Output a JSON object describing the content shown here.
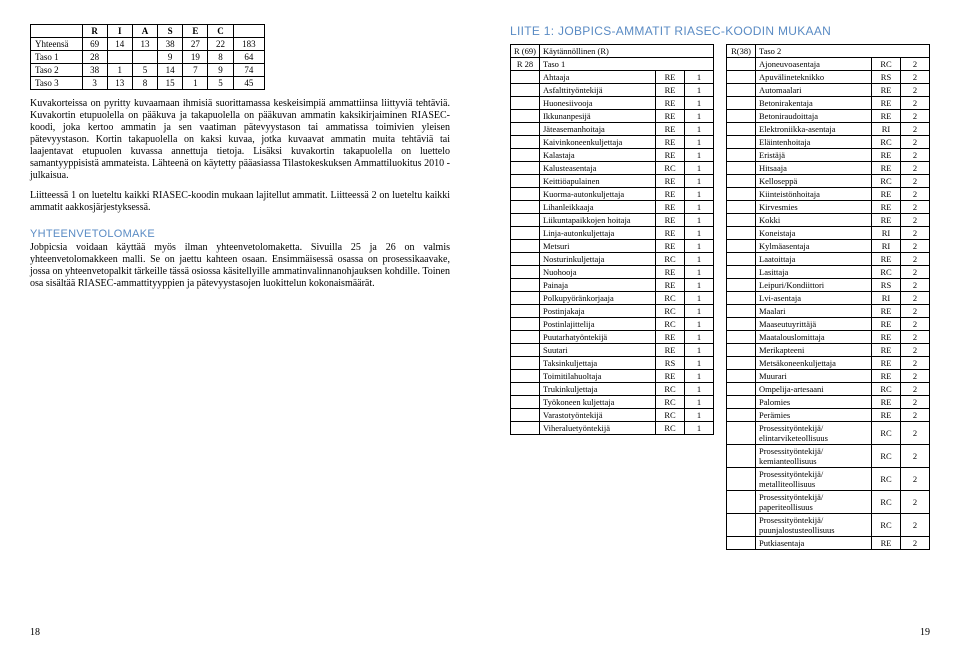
{
  "left": {
    "statTable": {
      "headers": [
        "R",
        "I",
        "A",
        "S",
        "E",
        "C"
      ],
      "rows": [
        {
          "label": "Yhteensä",
          "cells": [
            "69",
            "14",
            "13",
            "38",
            "27",
            "22",
            "183"
          ]
        },
        {
          "label": "Taso 1",
          "cells": [
            "28",
            "",
            "",
            "9",
            "19",
            "8",
            "64"
          ]
        },
        {
          "label": "Taso 2",
          "cells": [
            "38",
            "1",
            "5",
            "14",
            "7",
            "9",
            "74"
          ]
        },
        {
          "label": "Taso 3",
          "cells": [
            "3",
            "13",
            "8",
            "15",
            "1",
            "5",
            "45"
          ]
        }
      ]
    },
    "para1": "Kuvakorteissa on pyritty kuvaamaan ihmisiä suorittamassa keskeisimpiä ammattiinsa liittyviä tehtäviä. Kuvakortin etupuolella on pääkuva ja takapuolella on pääkuvan ammatin kaksikirjaiminen RIASEC-koodi, joka kertoo ammatin ja sen vaatiman pätevyystason tai ammatissa toimivien yleisen pätevyystason. Kortin takapuolella on kaksi kuvaa, jotka kuvaavat ammatin muita tehtäviä tai laajentavat etupuolen kuvassa annettuja tietoja. Lisäksi kuvakortin takapuolella on luettelo samantyyppisistä ammateista. Lähteenä on käytetty pääasiassa Tilastokeskuksen Ammattiluokitus 2010 -julkaisua.",
    "para2": "Liitteessä 1 on lueteltu kaikki RIASEC-koodin mukaan lajitellut ammatit. Liitteessä 2 on lueteltu kaikki ammatit aakkosjärjestyksessä.",
    "section": "YHTEENVETOLOMAKE",
    "para3": "Jobpicsia voidaan käyttää myös ilman yhteenvetolomaketta. Sivuilla 25 ja 26 on valmis yhteenvetolomakkeen malli. Se on jaettu kahteen osaan. Ensimmäisessä osassa on prosessikaavake, jossa on yhteenvetopalkit tärkeille tässä osiossa käsitellyille ammatinvalinnanohjauksen kohdille. Toinen osa sisältää RIASEC-ammattityyppien ja pätevyystasojen luokittelun kokonaismäärät.",
    "pagenum": "18"
  },
  "right": {
    "title": "LIITE 1: JOBPICS-AMMATIT RIASEC-KOODIN MUKAAN",
    "col1": {
      "header1a": "R (69)",
      "header1b": "Käytännöllinen (R)",
      "header2a": "R 28",
      "header2b": "Taso 1",
      "rows": [
        [
          "Ahtaaja",
          "RE",
          "1"
        ],
        [
          "Asfalttityöntekijä",
          "RE",
          "1"
        ],
        [
          "Huonesiivooja",
          "RE",
          "1"
        ],
        [
          "Ikkunanpesijä",
          "RE",
          "1"
        ],
        [
          "Jäteasemanhoitaja",
          "RE",
          "1"
        ],
        [
          "Kaivinkoneenkuljettaja",
          "RE",
          "1"
        ],
        [
          "Kalastaja",
          "RE",
          "1"
        ],
        [
          "Kalusteasentaja",
          "RC",
          "1"
        ],
        [
          "Keittiöapulainen",
          "RE",
          "1"
        ],
        [
          "Kuorma-autonkuljettaja",
          "RE",
          "1"
        ],
        [
          "Lihanleikkaaja",
          "RE",
          "1"
        ],
        [
          "Liikuntapaikkojen hoitaja",
          "RE",
          "1"
        ],
        [
          "Linja-autonkuljettaja",
          "RE",
          "1"
        ],
        [
          "Metsuri",
          "RE",
          "1"
        ],
        [
          "Nosturinkuljettaja",
          "RC",
          "1"
        ],
        [
          "Nuohooja",
          "RE",
          "1"
        ],
        [
          "Painaja",
          "RE",
          "1"
        ],
        [
          "Polkupyöränkorjaaja",
          "RC",
          "1"
        ],
        [
          "Postinjakaja",
          "RC",
          "1"
        ],
        [
          "Postinlajittelija",
          "RC",
          "1"
        ],
        [
          "Puutarhatyöntekijä",
          "RE",
          "1"
        ],
        [
          "Suutari",
          "RE",
          "1"
        ],
        [
          "Taksinkuljettaja",
          "RS",
          "1"
        ],
        [
          "Toimitilahuoltaja",
          "RE",
          "1"
        ],
        [
          "Trukinkuljettaja",
          "RC",
          "1"
        ],
        [
          "Työkoneen kuljettaja",
          "RC",
          "1"
        ],
        [
          "Varastotyöntekijä",
          "RC",
          "1"
        ],
        [
          "Viheraluetyöntekijä",
          "RC",
          "1"
        ]
      ]
    },
    "col2": {
      "header1a": "R(38)",
      "header1b": "Taso 2",
      "rows": [
        [
          "Ajoneuvoasentaja",
          "RC",
          "2"
        ],
        [
          "Apuvälineteknikko",
          "RS",
          "2"
        ],
        [
          "Automaalari",
          "RE",
          "2"
        ],
        [
          "Betonirakentaja",
          "RE",
          "2"
        ],
        [
          "Betoniraudoittaja",
          "RE",
          "2"
        ],
        [
          "Elektroniikka-asentaja",
          "RI",
          "2"
        ],
        [
          "Eläintenhoitaja",
          "RC",
          "2"
        ],
        [
          "Eristäjä",
          "RE",
          "2"
        ],
        [
          "Hitsaaja",
          "RE",
          "2"
        ],
        [
          "Kelloseppä",
          "RC",
          "2"
        ],
        [
          "Kiinteistönhoitaja",
          "RE",
          "2"
        ],
        [
          "Kirvesmies",
          "RE",
          "2"
        ],
        [
          "Kokki",
          "RE",
          "2"
        ],
        [
          "Koneistaja",
          "RI",
          "2"
        ],
        [
          "Kylmäasentaja",
          "RI",
          "2"
        ],
        [
          "Laatoittaja",
          "RE",
          "2"
        ],
        [
          "Lasittaja",
          "RC",
          "2"
        ],
        [
          "Leipuri/Kondiittori",
          "RS",
          "2"
        ],
        [
          "Lvi-asentaja",
          "RI",
          "2"
        ],
        [
          "Maalari",
          "RE",
          "2"
        ],
        [
          "Maaseutuyrittäjä",
          "RE",
          "2"
        ],
        [
          "Maatalouslomittaja",
          "RE",
          "2"
        ],
        [
          "Merikapteeni",
          "RE",
          "2"
        ],
        [
          "Metsäkoneenkuljettaja",
          "RE",
          "2"
        ],
        [
          "Muurari",
          "RE",
          "2"
        ],
        [
          "Ompelija-artesaani",
          "RC",
          "2"
        ],
        [
          "Palomies",
          "RE",
          "2"
        ],
        [
          "Perämies",
          "RE",
          "2"
        ],
        [
          "Prosessityöntekijä/ elintarviketeollisuus",
          "RC",
          "2"
        ],
        [
          "Prosessityöntekijä/ kemianteollisuus",
          "RC",
          "2"
        ],
        [
          "Prosessityöntekijä/ metalliteollisuus",
          "RC",
          "2"
        ],
        [
          "Prosessityöntekijä/ paperiteollisuus",
          "RC",
          "2"
        ],
        [
          "Prosessityöntekijä/ puunjalostusteollisuus",
          "RC",
          "2"
        ],
        [
          "Putkiasentaja",
          "RE",
          "2"
        ]
      ]
    },
    "pagenum": "19"
  }
}
